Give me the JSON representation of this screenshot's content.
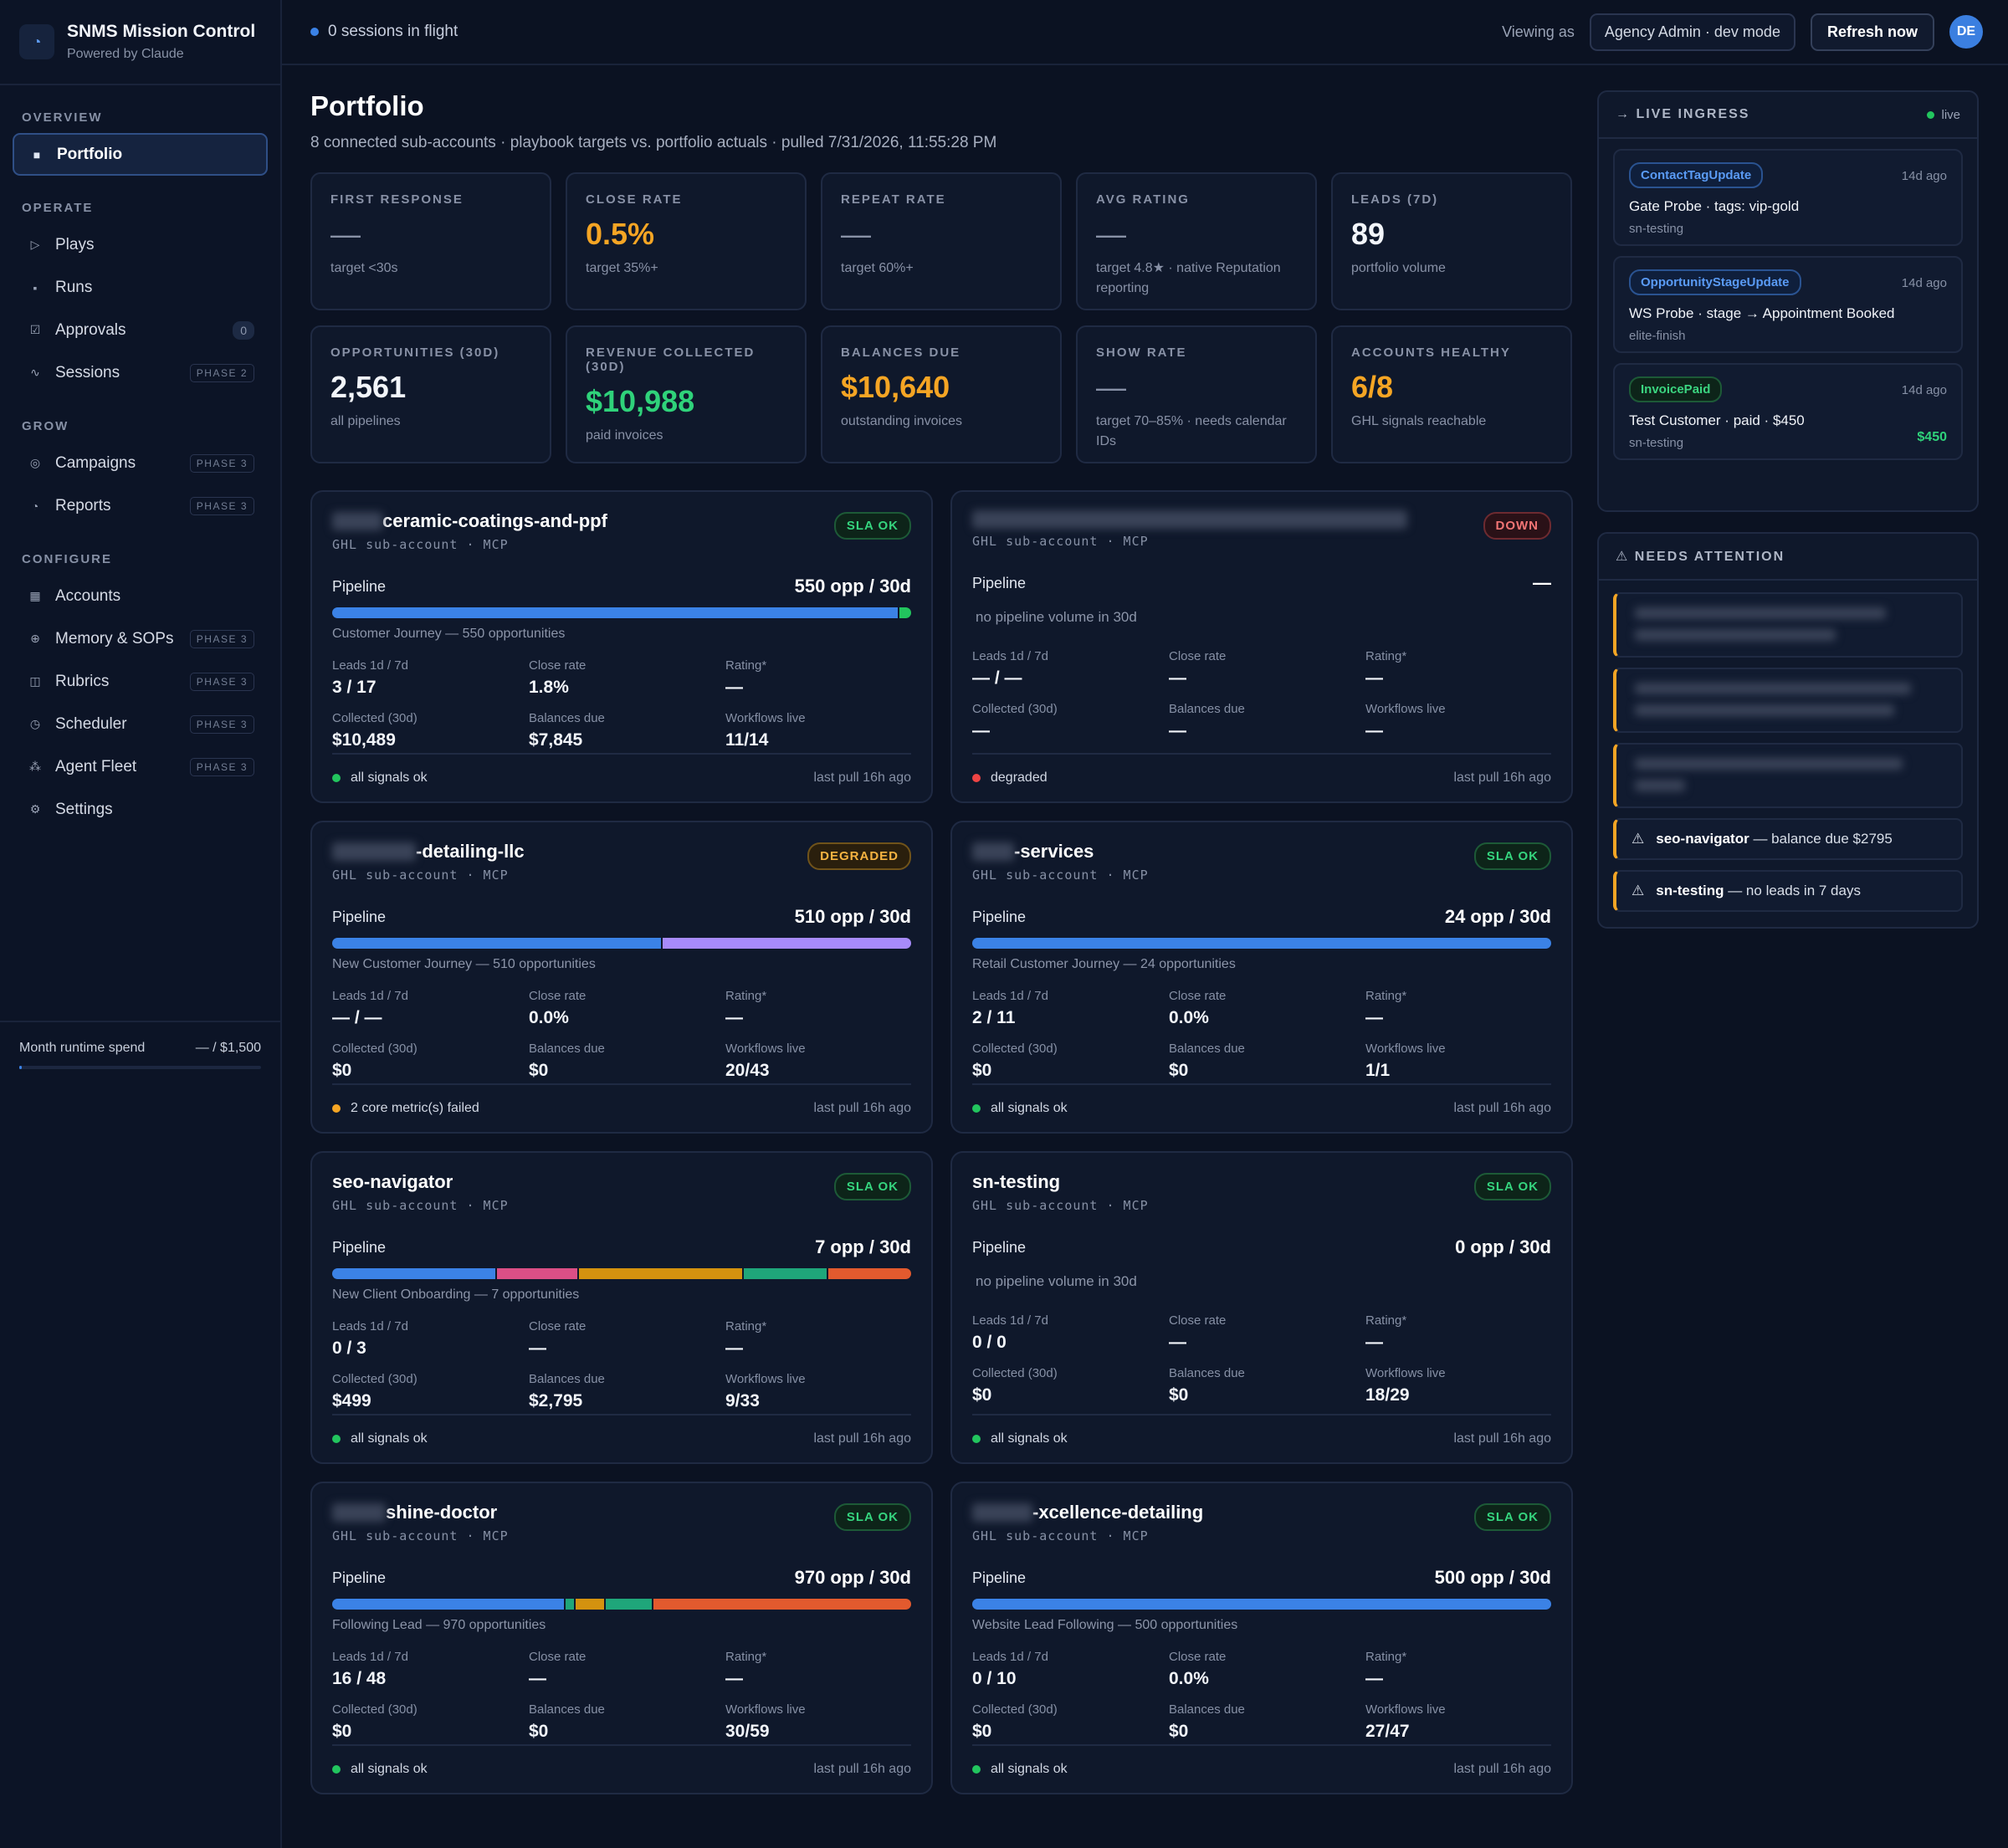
{
  "brand": {
    "title": "SNMS Mission Control",
    "subtitle": "Powered by Claude"
  },
  "nav": {
    "groups": [
      {
        "label": "OVERVIEW",
        "items": [
          {
            "label": "Portfolio",
            "icon": "square-icon",
            "active": true
          }
        ]
      },
      {
        "label": "OPERATE",
        "items": [
          {
            "label": "Plays",
            "icon": "play-icon"
          },
          {
            "label": "Runs",
            "icon": "list-icon"
          },
          {
            "label": "Approvals",
            "icon": "check-box-icon",
            "badge": "0"
          },
          {
            "label": "Sessions",
            "icon": "wave-icon",
            "phase": "PHASE 2"
          }
        ]
      },
      {
        "label": "GROW",
        "items": [
          {
            "label": "Campaigns",
            "icon": "target-icon",
            "phase": "PHASE 3"
          },
          {
            "label": "Reports",
            "icon": "pie-icon",
            "phase": "PHASE 3"
          }
        ]
      },
      {
        "label": "CONFIGURE",
        "items": [
          {
            "label": "Accounts",
            "icon": "grid-icon"
          },
          {
            "label": "Memory & SOPs",
            "icon": "plus-circle-icon",
            "phase": "PHASE 3"
          },
          {
            "label": "Rubrics",
            "icon": "columns-icon",
            "phase": "PHASE 3"
          },
          {
            "label": "Scheduler",
            "icon": "clock-icon",
            "phase": "PHASE 3"
          },
          {
            "label": "Agent Fleet",
            "icon": "nodes-icon",
            "phase": "PHASE 3"
          },
          {
            "label": "Settings",
            "icon": "gear-icon"
          }
        ]
      }
    ]
  },
  "spend": {
    "label": "Month runtime spend",
    "value": "— / $1,500",
    "fraction": 0.01
  },
  "topbar": {
    "flight": "0 sessions in flight",
    "viewing": "Viewing as",
    "role": "Agency Admin · dev mode",
    "refresh": "Refresh now",
    "avatar": "DE"
  },
  "page": {
    "title": "Portfolio",
    "subtitle": "8 connected sub-accounts · playbook targets vs. portfolio actuals · pulled 7/31/2026, 11:55:28 PM"
  },
  "kpis": [
    {
      "label": "FIRST RESPONSE",
      "value": "—",
      "note": "target <30s",
      "tone": "dash"
    },
    {
      "label": "CLOSE RATE",
      "value": "0.5%",
      "note": "target 35%+",
      "tone": "orange"
    },
    {
      "label": "REPEAT RATE",
      "value": "—",
      "note": "target 60%+",
      "tone": "dash"
    },
    {
      "label": "AVG RATING",
      "value": "—",
      "note": "target 4.8★ · native Reputation reporting",
      "tone": "dash"
    },
    {
      "label": "LEADS (7D)",
      "value": "89",
      "note": "portfolio volume",
      "tone": ""
    },
    {
      "label": "OPPORTUNITIES (30D)",
      "value": "2,561",
      "note": "all pipelines",
      "tone": ""
    },
    {
      "label": "REVENUE COLLECTED (30D)",
      "value": "$10,988",
      "note": "paid invoices",
      "tone": "green"
    },
    {
      "label": "BALANCES DUE",
      "value": "$10,640",
      "note": "outstanding invoices",
      "tone": "orange"
    },
    {
      "label": "SHOW RATE",
      "value": "—",
      "note": "target 70–85% · needs calendar IDs",
      "tone": "dash"
    },
    {
      "label": "ACCOUNTS HEALTHY",
      "value": "6/8",
      "note": "GHL signals reachable",
      "tone": "orange"
    }
  ],
  "labels": {
    "type": "GHL sub-account · MCP",
    "pipeline": "Pipeline",
    "leads": "Leads 1d / 7d",
    "close": "Close rate",
    "rating": "Rating*",
    "collected": "Collected (30d)",
    "balances": "Balances due",
    "workflows": "Workflows live",
    "pull": "last pull 16h ago",
    "no_volume": "no pipeline volume in 30d"
  },
  "accounts": [
    {
      "name": "ceramic-coatings-and-ppf",
      "redact": 60,
      "status": "SLA OK",
      "st": "ok",
      "pipeline": "550 opp / 30d",
      "segments": [
        {
          "v": 98,
          "c": "#3b82e6"
        },
        {
          "v": 2,
          "c": "#22c55e"
        }
      ],
      "note": "Customer Journey — 550 opportunities",
      "leads": "3 / 17",
      "close": "1.8%",
      "rating": "—",
      "collected": "$10,489",
      "balances": "$7,845",
      "workflows": "11/14",
      "signal": "all signals ok",
      "sig_color": "#22c55e"
    },
    {
      "name": "",
      "redact": 520,
      "status": "DOWN",
      "st": "down",
      "pipeline": "—",
      "segments": [],
      "note": "",
      "leads": "— / —",
      "close": "—",
      "rating": "—",
      "collected": "—",
      "balances": "—",
      "workflows": "—",
      "signal": "degraded",
      "sig_color": "#ef4444"
    },
    {
      "name": "-detailing-llc",
      "redact": 100,
      "status": "DEGRADED",
      "st": "deg",
      "pipeline": "510 opp / 30d",
      "segments": [
        {
          "v": 57,
          "c": "#3b82e6"
        },
        {
          "v": 43,
          "c": "#a78bfa"
        }
      ],
      "note": "New Customer Journey — 510 opportunities",
      "leads": "— / —",
      "close": "0.0%",
      "rating": "—",
      "collected": "$0",
      "balances": "$0",
      "workflows": "20/43",
      "signal": "2 core metric(s) failed",
      "sig_color": "#f5a524"
    },
    {
      "name": "-services",
      "redact": 50,
      "status": "SLA OK",
      "st": "ok",
      "pipeline": "24 opp / 30d",
      "segments": [
        {
          "v": 100,
          "c": "#3b82e6"
        }
      ],
      "note": "Retail Customer Journey — 24 opportunities",
      "leads": "2 / 11",
      "close": "0.0%",
      "rating": "—",
      "collected": "$0",
      "balances": "$0",
      "workflows": "1/1",
      "signal": "all signals ok",
      "sig_color": "#22c55e"
    },
    {
      "name": "seo-navigator",
      "redact": 0,
      "status": "SLA OK",
      "st": "ok",
      "pipeline": "7 opp / 30d",
      "segments": [
        {
          "v": 28.5,
          "c": "#3b82e6"
        },
        {
          "v": 14,
          "c": "#db4f86"
        },
        {
          "v": 28.5,
          "c": "#d4920f"
        },
        {
          "v": 14.5,
          "c": "#1fa67a"
        },
        {
          "v": 14.5,
          "c": "#e25a2e"
        }
      ],
      "note": "New Client Onboarding — 7 opportunities",
      "leads": "0 / 3",
      "close": "—",
      "rating": "—",
      "collected": "$499",
      "balances": "$2,795",
      "workflows": "9/33",
      "signal": "all signals ok",
      "sig_color": "#22c55e"
    },
    {
      "name": "sn-testing",
      "redact": 0,
      "status": "SLA OK",
      "st": "ok",
      "pipeline": "0 opp / 30d",
      "segments": [],
      "note": "",
      "leads": "0 / 0",
      "close": "—",
      "rating": "—",
      "collected": "$0",
      "balances": "$0",
      "workflows": "18/29",
      "signal": "all signals ok",
      "sig_color": "#22c55e"
    },
    {
      "name": "shine-doctor",
      "redact": 64,
      "status": "SLA OK",
      "st": "ok",
      "pipeline": "970 opp / 30d",
      "segments": [
        {
          "v": 40.5,
          "c": "#3b82e6"
        },
        {
          "v": 1.5,
          "c": "#1fa67a"
        },
        {
          "v": 5,
          "c": "#d4920f"
        },
        {
          "v": 8,
          "c": "#1fa67a"
        },
        {
          "v": 45,
          "c": "#e25a2e"
        }
      ],
      "note": "Following Lead — 970 opportunities",
      "leads": "16 / 48",
      "close": "—",
      "rating": "—",
      "collected": "$0",
      "balances": "$0",
      "workflows": "30/59",
      "signal": "all signals ok",
      "sig_color": "#22c55e"
    },
    {
      "name": "-xcellence-detailing",
      "redact": 72,
      "status": "SLA OK",
      "st": "ok",
      "pipeline": "500 opp / 30d",
      "segments": [
        {
          "v": 100,
          "c": "#3b82e6"
        }
      ],
      "note": "Website Lead Following — 500 opportunities",
      "leads": "0 / 10",
      "close": "0.0%",
      "rating": "—",
      "collected": "$0",
      "balances": "$0",
      "workflows": "27/47",
      "signal": "all signals ok",
      "sig_color": "#22c55e"
    }
  ],
  "ingress": {
    "title": "LIVE INGRESS",
    "live": "live",
    "events": [
      {
        "tag": "ContactTagUpdate",
        "tone": "blue",
        "ago": "14d ago",
        "text": "Gate Probe · tags: vip-gold",
        "src": "sn-testing",
        "amount": ""
      },
      {
        "tag": "OpportunityStageUpdate",
        "tone": "blue",
        "ago": "14d ago",
        "text": "WS Probe · stage → Appointment Booked",
        "src": "elite-finish",
        "amount": ""
      },
      {
        "tag": "InvoicePaid",
        "tone": "green",
        "ago": "14d ago",
        "text": "Test Customer · paid · $450",
        "src": "sn-testing",
        "amount": "$450"
      }
    ]
  },
  "attention": {
    "title": "NEEDS ATTENTION",
    "items": [
      {
        "name": "seo-navigator",
        "text": " — balance due $2795"
      },
      {
        "name": "sn-testing",
        "text": " — no leads in 7 days"
      }
    ]
  },
  "colors": {
    "accent": "#3b82e6",
    "ok": "#22c55e",
    "warn": "#f5a524",
    "down": "#ef4444"
  }
}
